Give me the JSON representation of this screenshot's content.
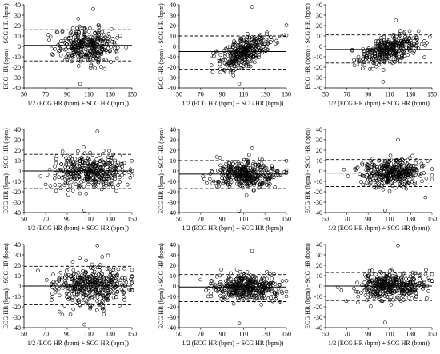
{
  "figure": {
    "panel_count": 9,
    "layout": "3 rows x 3 columns",
    "point_color": "#000000",
    "reference_line_color": "#000000"
  },
  "chart_data": [
    {
      "type": "scatter",
      "plot": "Bland-Altman",
      "xlabel": "1/2 (ECG HR (bpm) + SCG HR (bpm))",
      "ylabel": "ECG HR (bpm) - SCG HR (bpm)",
      "xlim": [
        50,
        150
      ],
      "ylim": [
        -40,
        40
      ],
      "xticks": [
        50,
        70,
        90,
        110,
        130,
        150
      ],
      "yticks": [
        -40,
        -30,
        -20,
        -10,
        0,
        10,
        20,
        30,
        40
      ],
      "mean_bias": 1,
      "upper_loa": 16,
      "lower_loa": -14,
      "points_approx": 350,
      "x_range": [
        65,
        148
      ],
      "x_peak": 108,
      "x_spread": 14,
      "y_sd": 8.5,
      "trend": 0,
      "y_extremes": [
        -36,
        36
      ]
    },
    {
      "type": "scatter",
      "plot": "Bland-Altman",
      "xlabel": "1/2 (ECG HR (bpm) + SCG HR (bpm))",
      "ylabel": "ECG HR (bpm) - SCG HR (bpm)",
      "xlim": [
        50,
        150
      ],
      "ylim": [
        -40,
        40
      ],
      "xticks": [
        50,
        70,
        90,
        110,
        130,
        150
      ],
      "yticks": [
        -40,
        -30,
        -20,
        -10,
        0,
        10,
        20,
        30,
        40
      ],
      "mean_bias": -5,
      "upper_loa": 10,
      "lower_loa": -22,
      "points_approx": 350,
      "x_range": [
        80,
        150
      ],
      "x_peak": 112,
      "x_spread": 13,
      "y_sd": 7,
      "trend": 0.42,
      "y_extremes": [
        -36,
        38
      ]
    },
    {
      "type": "scatter",
      "plot": "Bland-Altman",
      "xlabel": "1/2 (ECG HR (bpm) + SCG HR (bpm))",
      "ylabel": "ECG HR (bpm) - SCG HR (bpm)",
      "xlim": [
        50,
        150
      ],
      "ylim": [
        -40,
        40
      ],
      "xticks": [
        50,
        70,
        90,
        110,
        130,
        150
      ],
      "yticks": [
        -40,
        -30,
        -20,
        -10,
        0,
        10,
        20,
        30,
        40
      ],
      "mean_bias": -3,
      "upper_loa": 11,
      "lower_loa": -16,
      "points_approx": 350,
      "x_range": [
        75,
        148
      ],
      "x_peak": 110,
      "x_spread": 13,
      "y_sd": 6.5,
      "trend": 0.28,
      "y_extremes": [
        -34,
        25
      ]
    },
    {
      "type": "scatter",
      "plot": "Bland-Altman",
      "xlabel": "1/2 (ECG HR (bpm) + SCG HR (bpm))",
      "ylabel": "ECG HR (bpm) - SCG HR (bpm)",
      "xlim": [
        50,
        150
      ],
      "ylim": [
        -40,
        40
      ],
      "xticks": [
        50,
        70,
        90,
        110,
        130,
        150
      ],
      "yticks": [
        -40,
        -30,
        -20,
        -10,
        0,
        10,
        20,
        30,
        40
      ],
      "mean_bias": 0,
      "upper_loa": 16,
      "lower_loa": -17,
      "points_approx": 380,
      "x_range": [
        60,
        150
      ],
      "x_peak": 112,
      "x_spread": 16,
      "y_sd": 8.5,
      "trend": 0,
      "y_extremes": [
        -38,
        38
      ]
    },
    {
      "type": "scatter",
      "plot": "Bland-Altman",
      "xlabel": "1/2 (ECG HR (bpm) + SCG HR (bpm))",
      "ylabel": "ECG HR (bpm) - SCG HR (bpm)",
      "xlim": [
        50,
        150
      ],
      "ylim": [
        -40,
        40
      ],
      "xticks": [
        50,
        70,
        90,
        110,
        130,
        150
      ],
      "yticks": [
        -40,
        -30,
        -20,
        -10,
        0,
        10,
        20,
        30,
        40
      ],
      "mean_bias": -3,
      "upper_loa": 10,
      "lower_loa": -17,
      "points_approx": 380,
      "x_range": [
        65,
        150
      ],
      "x_peak": 112,
      "x_spread": 15,
      "y_sd": 6.5,
      "trend": 0,
      "y_extremes": [
        -38,
        22
      ]
    },
    {
      "type": "scatter",
      "plot": "Bland-Altman",
      "xlabel": "1/2 (ECG HR (bpm) + SCG HR (bpm))",
      "ylabel": "ECG HR (bpm) - SCG HR (bpm)",
      "xlim": [
        50,
        150
      ],
      "ylim": [
        -40,
        40
      ],
      "xticks": [
        50,
        70,
        90,
        110,
        130,
        150
      ],
      "yticks": [
        -40,
        -30,
        -20,
        -10,
        0,
        10,
        20,
        30,
        40
      ],
      "mean_bias": -2,
      "upper_loa": 11,
      "lower_loa": -15,
      "points_approx": 380,
      "x_range": [
        65,
        150
      ],
      "x_peak": 112,
      "x_spread": 14,
      "y_sd": 6.5,
      "trend": 0,
      "y_extremes": [
        -38,
        30
      ]
    },
    {
      "type": "scatter",
      "plot": "Bland-Altman",
      "xlabel": "1/2 (ECG HR (bpm) + SCG HR (bpm))",
      "ylabel": "ECG HR (bpm) - SCG HR (bpm)",
      "xlim": [
        50,
        150
      ],
      "ylim": [
        -40,
        40
      ],
      "xticks": [
        50,
        70,
        90,
        110,
        130,
        150
      ],
      "yticks": [
        -40,
        -30,
        -20,
        -10,
        0,
        10,
        20,
        30,
        40
      ],
      "mean_bias": 0,
      "upper_loa": 19,
      "lower_loa": -18,
      "points_approx": 420,
      "x_range": [
        60,
        150
      ],
      "x_peak": 112,
      "x_spread": 17,
      "y_sd": 9.5,
      "trend": 0,
      "y_extremes": [
        -37,
        39
      ]
    },
    {
      "type": "scatter",
      "plot": "Bland-Altman",
      "xlabel": "1/2 (ECG HR (bpm) + SCG HR (bpm))",
      "ylabel": "ECG HR (bpm) - SCG HR (bpm)",
      "xlim": [
        50,
        150
      ],
      "ylim": [
        -40,
        40
      ],
      "xticks": [
        50,
        70,
        90,
        110,
        130,
        150
      ],
      "yticks": [
        -40,
        -30,
        -20,
        -10,
        0,
        10,
        20,
        30,
        40
      ],
      "mean_bias": -1,
      "upper_loa": 11,
      "lower_loa": -15,
      "points_approx": 400,
      "x_range": [
        60,
        150
      ],
      "x_peak": 112,
      "x_spread": 16,
      "y_sd": 6.5,
      "trend": 0,
      "y_extremes": [
        -36,
        34
      ]
    },
    {
      "type": "scatter",
      "plot": "Bland-Altman",
      "xlabel": "1/2 (ECG HR (bpm) + SCG HR (bpm))",
      "ylabel": "ECG HR (bpm) - SCG HR (bpm)",
      "xlim": [
        50,
        150
      ],
      "ylim": [
        -40,
        40
      ],
      "xticks": [
        50,
        70,
        90,
        110,
        130,
        150
      ],
      "yticks": [
        -40,
        -30,
        -20,
        -10,
        0,
        10,
        20,
        30,
        40
      ],
      "mean_bias": 0,
      "upper_loa": 13,
      "lower_loa": -14,
      "points_approx": 400,
      "x_range": [
        60,
        150
      ],
      "x_peak": 112,
      "x_spread": 16,
      "y_sd": 7,
      "trend": 0,
      "y_extremes": [
        -35,
        39
      ]
    }
  ]
}
